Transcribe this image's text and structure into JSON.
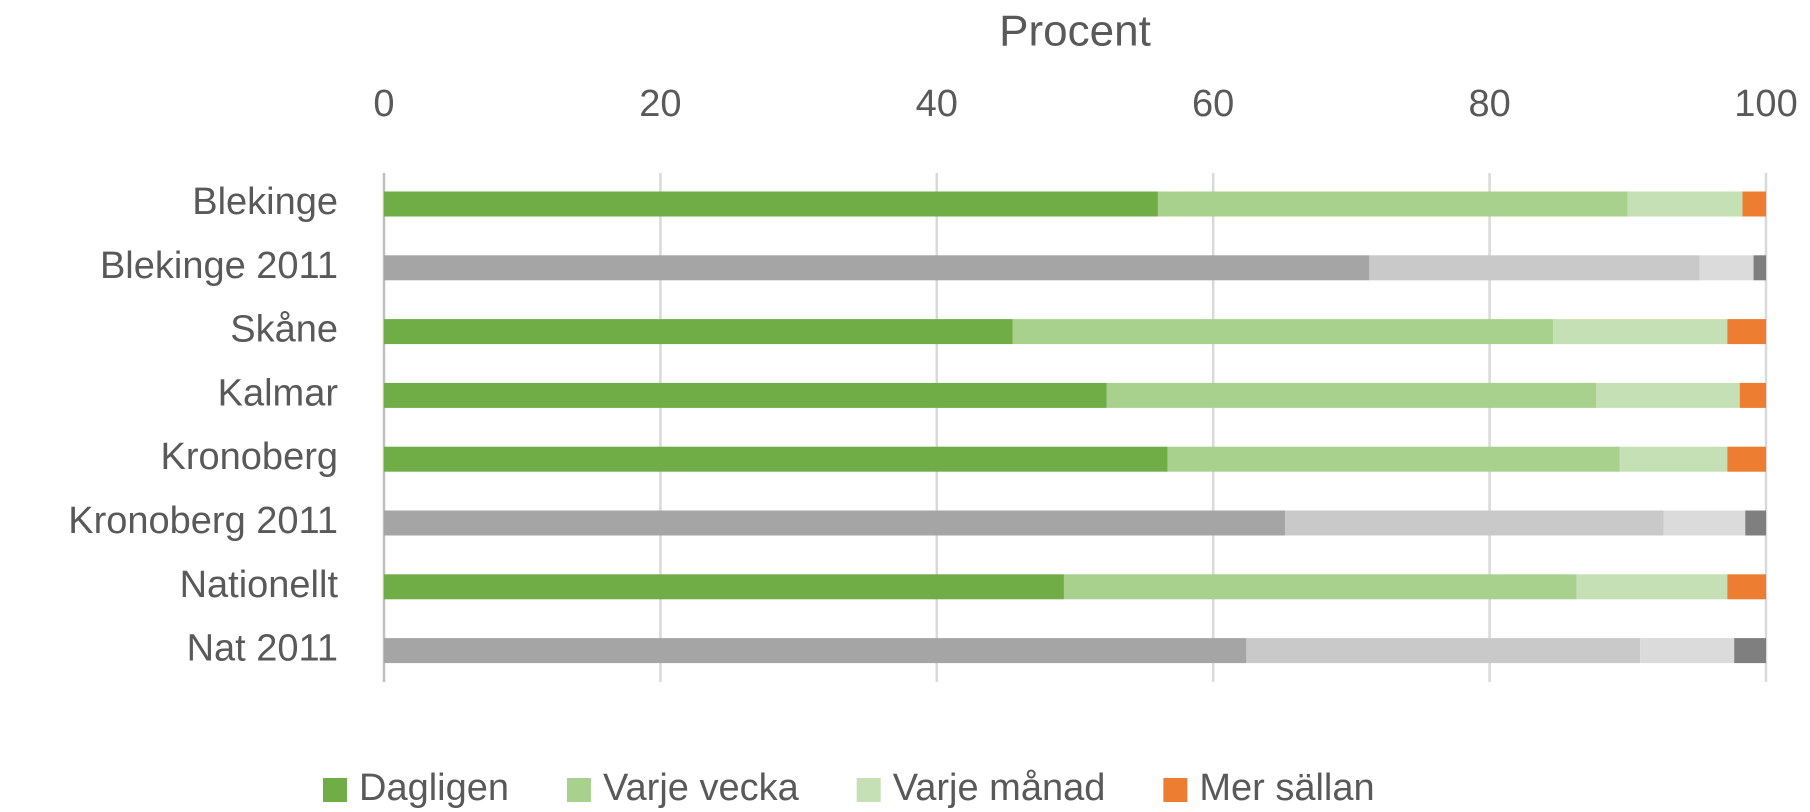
{
  "chart_data": {
    "type": "stacked_barh",
    "xlabel": "Procent",
    "categories": [
      "Blekinge",
      "Blekinge 2011",
      "Skåne",
      "Kalmar",
      "Kronoberg",
      "Kronoberg 2011",
      "Nationellt",
      "Nat 2011"
    ],
    "series": [
      {
        "name": "Dagligen",
        "color": "#70ad47",
        "colors": [
          "#70ad47",
          "#a5a5a5",
          "#70ad47",
          "#70ad47",
          "#70ad47",
          "#a5a5a5",
          "#70ad47",
          "#a5a5a5"
        ],
        "values": [
          56.0,
          71.3,
          45.5,
          52.3,
          56.7,
          65.2,
          49.2,
          62.4
        ]
      },
      {
        "name": "Varje vecka",
        "color": "#a9d18e",
        "colors": [
          "#a9d18e",
          "#c9c9c9",
          "#a9d18e",
          "#a9d18e",
          "#a9d18e",
          "#c9c9c9",
          "#a9d18e",
          "#c9c9c9"
        ],
        "values": [
          34.0,
          23.9,
          39.1,
          35.4,
          32.7,
          27.4,
          37.1,
          28.5
        ]
      },
      {
        "name": "Varje månad",
        "color": "#c5e0b4",
        "colors": [
          "#c5e0b4",
          "#dbdbdb",
          "#c5e0b4",
          "#c5e0b4",
          "#c5e0b4",
          "#dbdbdb",
          "#c5e0b4",
          "#dbdbdb"
        ],
        "values": [
          8.3,
          3.9,
          12.6,
          10.4,
          7.8,
          5.9,
          10.9,
          6.8
        ]
      },
      {
        "name": "Mer sällan",
        "color": "#ed7d31",
        "colors": [
          "#ed7d31",
          "#7f7f7f",
          "#ed7d31",
          "#ed7d31",
          "#ed7d31",
          "#7f7f7f",
          "#ed7d31",
          "#7f7f7f"
        ],
        "values": [
          1.7,
          0.9,
          2.8,
          1.9,
          2.8,
          1.5,
          2.8,
          2.3
        ]
      }
    ],
    "xlim": [
      0,
      100
    ],
    "xticks": [
      0,
      20,
      40,
      60,
      80,
      100
    ],
    "grid": true,
    "legend": "bottom"
  }
}
